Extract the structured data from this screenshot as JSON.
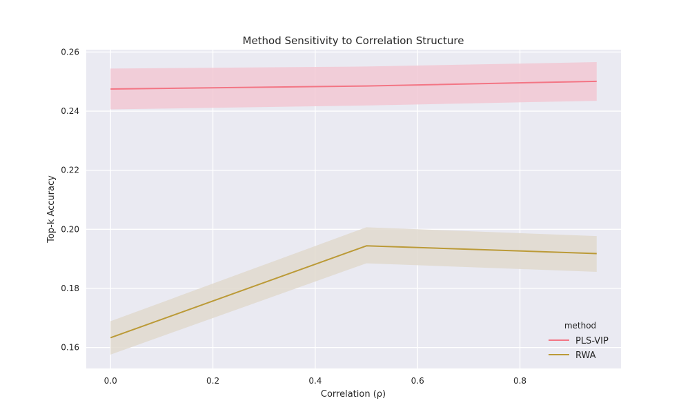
{
  "chart_data": {
    "type": "line",
    "title": "Method Sensitivity to Correlation Structure",
    "xlabel": "Correlation (ρ)",
    "ylabel": "Top-k Accuracy",
    "xlim": [
      -0.0475,
      0.9975
    ],
    "ylim": [
      0.1529,
      0.2608
    ],
    "xticks": [
      0.0,
      0.2,
      0.4,
      0.6,
      0.8
    ],
    "xtick_labels": [
      "0.0",
      "0.2",
      "0.4",
      "0.6",
      "0.8"
    ],
    "yticks": [
      0.16,
      0.18,
      0.2,
      0.22,
      0.24,
      0.26
    ],
    "ytick_labels": [
      "0.16",
      "0.18",
      "0.20",
      "0.22",
      "0.24",
      "0.26"
    ],
    "grid": true,
    "legend": {
      "title": "method",
      "placement": "bottom-right"
    },
    "series": [
      {
        "name": "PLS-VIP",
        "color": "#f37584",
        "band_color": "#f2c8d4",
        "x": [
          0.0,
          0.5,
          0.95
        ],
        "y": [
          0.2475,
          0.2485,
          0.2501
        ],
        "lower": [
          0.2406,
          0.2419,
          0.2435
        ],
        "upper": [
          0.2544,
          0.2551,
          0.2566
        ]
      },
      {
        "name": "RWA",
        "color": "#bb9a37",
        "band_color": "#e0d9ce",
        "x": [
          0.0,
          0.5,
          0.95
        ],
        "y": [
          0.1633,
          0.1944,
          0.1918
        ],
        "lower": [
          0.1576,
          0.1885,
          0.1856
        ],
        "upper": [
          0.1689,
          0.2007,
          0.1977
        ]
      }
    ]
  }
}
